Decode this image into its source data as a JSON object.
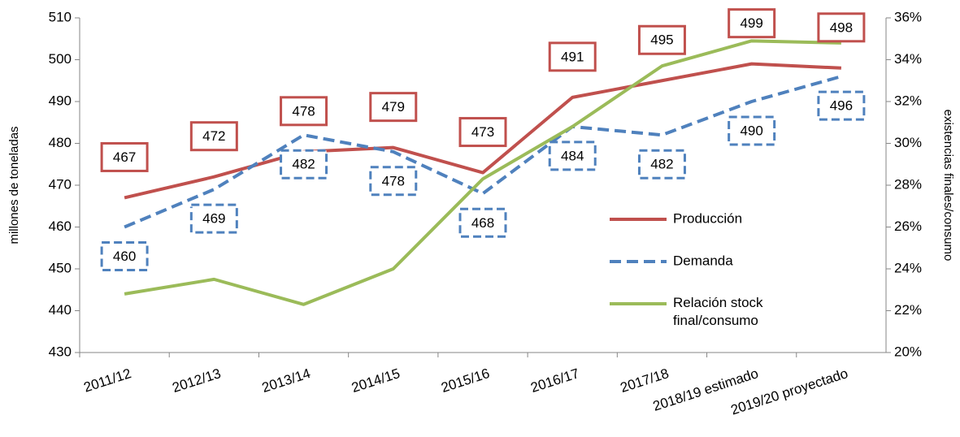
{
  "chart_data": {
    "type": "line",
    "ylabel": "millones de toneladas",
    "y2label": "existencias finales/consumo",
    "categories": [
      "2011/12",
      "2012/13",
      "2013/14",
      "2014/15",
      "2015/16",
      "2016/17",
      "2017/18",
      "2018/19 estimado",
      "2019/20 proyectado"
    ],
    "series": [
      {
        "name": "Producción",
        "color": "#c0504d",
        "style": "solid",
        "values": [
          467,
          472,
          478,
          479,
          473,
          491,
          495,
          499,
          498
        ]
      },
      {
        "name": "Demanda",
        "color": "#4f81bd",
        "style": "dashed",
        "values": [
          460,
          469,
          482,
          478,
          468,
          484,
          482,
          490,
          496
        ]
      },
      {
        "name": "Relación stock final/consumo",
        "color": "#9bbb59",
        "style": "solid",
        "axis": "y2",
        "values": [
          22.8,
          23.5,
          22.3,
          24.0,
          28.3,
          30.8,
          33.7,
          34.9,
          34.8
        ]
      }
    ],
    "ylim": [
      430,
      510
    ],
    "yticks": [
      430,
      440,
      450,
      460,
      470,
      480,
      490,
      500,
      510
    ],
    "y2lim": [
      20,
      36
    ],
    "y2ticks": [
      {
        "value": 20,
        "label": "20%"
      },
      {
        "value": 22,
        "label": "22%"
      },
      {
        "value": 24,
        "label": "24%"
      },
      {
        "value": 26,
        "label": "26%"
      },
      {
        "value": 28,
        "label": "28%"
      },
      {
        "value": 30,
        "label": "30%"
      },
      {
        "value": 32,
        "label": "32%"
      },
      {
        "value": 34,
        "label": "34%"
      },
      {
        "value": 36,
        "label": "36%"
      }
    ],
    "grid": false,
    "legend": "right"
  }
}
